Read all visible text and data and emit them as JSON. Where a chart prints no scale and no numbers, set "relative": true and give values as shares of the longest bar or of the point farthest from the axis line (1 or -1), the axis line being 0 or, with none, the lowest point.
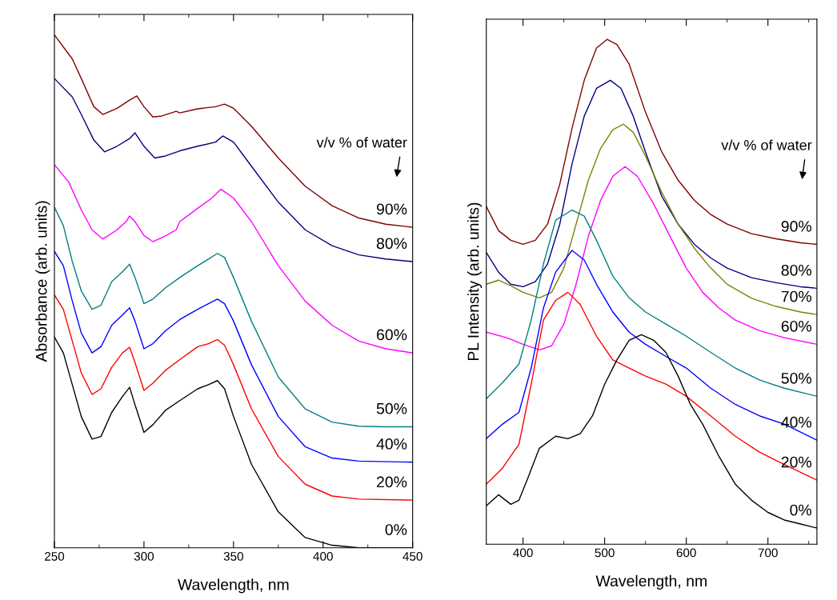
{
  "chart_data": [
    {
      "type": "line",
      "relative": true,
      "xlabel": "Wavelength, nm",
      "ylabel": "Absorbance (arb. units)",
      "xlim": [
        250,
        450
      ],
      "xticks": [
        250,
        300,
        350,
        400,
        450
      ],
      "tick_labels": "x",
      "annotations": [
        "v/v % of water"
      ],
      "series": [
        {
          "name": "90%",
          "color": "#800000",
          "x": [
            250,
            260,
            265,
            272,
            277,
            285,
            292,
            296,
            300,
            305,
            310,
            318,
            320,
            330,
            340,
            345,
            350,
            360,
            375,
            390,
            405,
            420,
            435,
            450
          ],
          "values": [
            1.0,
            0.953,
            0.915,
            0.86,
            0.845,
            0.857,
            0.873,
            0.881,
            0.86,
            0.84,
            0.842,
            0.851,
            0.848,
            0.856,
            0.86,
            0.865,
            0.857,
            0.822,
            0.76,
            0.705,
            0.667,
            0.643,
            0.631,
            0.625
          ]
        },
        {
          "name": "80%",
          "color": "#000080",
          "x": [
            250,
            260,
            265,
            272,
            278,
            285,
            292,
            295,
            300,
            306,
            312,
            320,
            330,
            340,
            344,
            350,
            360,
            375,
            390,
            405,
            420,
            435,
            450
          ],
          "values": [
            0.915,
            0.879,
            0.845,
            0.795,
            0.772,
            0.783,
            0.798,
            0.809,
            0.783,
            0.76,
            0.764,
            0.774,
            0.783,
            0.791,
            0.803,
            0.791,
            0.744,
            0.674,
            0.62,
            0.589,
            0.571,
            0.563,
            0.558
          ]
        },
        {
          "name": "60%",
          "color": "#ff00ff",
          "x": [
            250,
            258,
            265,
            271,
            277,
            285,
            290,
            292,
            295,
            300,
            305,
            312,
            318,
            320,
            330,
            338,
            343,
            350,
            360,
            375,
            390,
            405,
            420,
            435,
            450
          ],
          "values": [
            0.747,
            0.713,
            0.659,
            0.62,
            0.602,
            0.62,
            0.636,
            0.647,
            0.636,
            0.609,
            0.597,
            0.608,
            0.62,
            0.636,
            0.662,
            0.682,
            0.699,
            0.682,
            0.636,
            0.55,
            0.481,
            0.434,
            0.403,
            0.388,
            0.38
          ]
        },
        {
          "name": "50%",
          "color": "#008080",
          "x": [
            250,
            255,
            260,
            265,
            271,
            276,
            282,
            288,
            292,
            295,
            300,
            305,
            312,
            320,
            330,
            336,
            341,
            345,
            350,
            360,
            375,
            390,
            405,
            420,
            435,
            450
          ],
          "values": [
            0.664,
            0.628,
            0.558,
            0.501,
            0.465,
            0.473,
            0.519,
            0.538,
            0.553,
            0.527,
            0.476,
            0.485,
            0.507,
            0.527,
            0.55,
            0.563,
            0.574,
            0.566,
            0.527,
            0.442,
            0.333,
            0.271,
            0.245,
            0.237,
            0.236,
            0.236
          ]
        },
        {
          "name": "40%",
          "color": "#0000ff",
          "x": [
            250,
            255,
            260,
            265,
            271,
            276,
            282,
            288,
            292,
            295,
            300,
            305,
            312,
            320,
            330,
            336,
            341,
            345,
            350,
            360,
            375,
            390,
            405,
            420,
            450
          ],
          "values": [
            0.578,
            0.55,
            0.481,
            0.419,
            0.38,
            0.392,
            0.434,
            0.454,
            0.468,
            0.442,
            0.388,
            0.398,
            0.423,
            0.445,
            0.465,
            0.476,
            0.485,
            0.476,
            0.442,
            0.357,
            0.256,
            0.197,
            0.175,
            0.169,
            0.167
          ]
        },
        {
          "name": "20%",
          "color": "#ff0000",
          "x": [
            250,
            255,
            260,
            265,
            271,
            276,
            282,
            288,
            292,
            295,
            300,
            305,
            312,
            320,
            330,
            336,
            341,
            345,
            350,
            360,
            375,
            390,
            405,
            420,
            450
          ],
          "values": [
            0.493,
            0.465,
            0.403,
            0.341,
            0.299,
            0.31,
            0.352,
            0.38,
            0.391,
            0.361,
            0.307,
            0.321,
            0.346,
            0.367,
            0.392,
            0.398,
            0.406,
            0.395,
            0.357,
            0.271,
            0.178,
            0.124,
            0.101,
            0.095,
            0.093
          ]
        },
        {
          "name": "0%",
          "color": "#000000",
          "x": [
            250,
            255,
            260,
            265,
            271,
            276,
            282,
            288,
            292,
            295,
            300,
            305,
            312,
            320,
            330,
            336,
            341,
            345,
            350,
            360,
            375,
            390,
            405,
            420,
            450
          ],
          "values": [
            0.411,
            0.38,
            0.318,
            0.256,
            0.212,
            0.217,
            0.264,
            0.295,
            0.313,
            0.279,
            0.225,
            0.24,
            0.268,
            0.287,
            0.31,
            0.318,
            0.326,
            0.31,
            0.256,
            0.163,
            0.07,
            0.02,
            0.005,
            0.0,
            0.0
          ]
        }
      ]
    },
    {
      "type": "line",
      "relative": true,
      "xlabel": "Wavelength, nm",
      "ylabel": "PL Intensity (arb. units)",
      "xlim": [
        355,
        760
      ],
      "xticks": [
        400,
        500,
        600,
        700
      ],
      "tick_labels": "x",
      "annotations": [
        "v/v % of water"
      ],
      "series": [
        {
          "name": "90%",
          "color": "#800000",
          "x": [
            355,
            370,
            385,
            400,
            415,
            430,
            445,
            460,
            475,
            490,
            503,
            515,
            530,
            550,
            570,
            590,
            610,
            630,
            650,
            680,
            710,
            740,
            760
          ],
          "values": [
            0.669,
            0.621,
            0.602,
            0.594,
            0.602,
            0.634,
            0.713,
            0.824,
            0.919,
            0.983,
            1.0,
            0.99,
            0.951,
            0.856,
            0.777,
            0.721,
            0.681,
            0.653,
            0.634,
            0.615,
            0.605,
            0.597,
            0.594
          ]
        },
        {
          "name": "80%",
          "color": "#000080",
          "x": [
            355,
            370,
            385,
            400,
            415,
            430,
            445,
            460,
            475,
            490,
            507,
            520,
            535,
            550,
            570,
            590,
            610,
            630,
            650,
            680,
            710,
            740,
            760
          ],
          "values": [
            0.578,
            0.539,
            0.515,
            0.51,
            0.52,
            0.555,
            0.634,
            0.753,
            0.848,
            0.903,
            0.919,
            0.903,
            0.848,
            0.777,
            0.689,
            0.634,
            0.594,
            0.567,
            0.547,
            0.528,
            0.518,
            0.51,
            0.507
          ]
        },
        {
          "name": "70%",
          "color": "#808000",
          "x": [
            355,
            370,
            385,
            400,
            420,
            435,
            450,
            465,
            480,
            495,
            510,
            523,
            535,
            550,
            570,
            590,
            610,
            630,
            650,
            680,
            710,
            740,
            760
          ],
          "values": [
            0.515,
            0.523,
            0.512,
            0.499,
            0.488,
            0.499,
            0.547,
            0.634,
            0.721,
            0.784,
            0.821,
            0.832,
            0.816,
            0.769,
            0.697,
            0.634,
            0.586,
            0.547,
            0.515,
            0.487,
            0.471,
            0.46,
            0.455
          ]
        },
        {
          "name": "60%",
          "color": "#ff00ff",
          "x": [
            355,
            380,
            400,
            420,
            435,
            450,
            465,
            480,
            495,
            510,
            525,
            540,
            560,
            580,
            600,
            620,
            640,
            660,
            690,
            720,
            760
          ],
          "values": [
            0.42,
            0.409,
            0.396,
            0.385,
            0.393,
            0.436,
            0.515,
            0.61,
            0.681,
            0.729,
            0.748,
            0.729,
            0.674,
            0.61,
            0.547,
            0.499,
            0.468,
            0.444,
            0.423,
            0.409,
            0.396
          ]
        },
        {
          "name": "50%",
          "color": "#008080",
          "x": [
            355,
            375,
            395,
            410,
            425,
            440,
            460,
            475,
            490,
            510,
            530,
            550,
            575,
            600,
            630,
            660,
            690,
            720,
            760
          ],
          "values": [
            0.288,
            0.32,
            0.357,
            0.444,
            0.555,
            0.642,
            0.662,
            0.65,
            0.602,
            0.531,
            0.488,
            0.46,
            0.436,
            0.412,
            0.38,
            0.349,
            0.325,
            0.309,
            0.293
          ]
        },
        {
          "name": "40%",
          "color": "#0000ff",
          "x": [
            355,
            375,
            395,
            410,
            425,
            440,
            460,
            475,
            490,
            510,
            530,
            550,
            575,
            600,
            630,
            660,
            690,
            720,
            760
          ],
          "values": [
            0.209,
            0.238,
            0.261,
            0.349,
            0.468,
            0.539,
            0.582,
            0.563,
            0.515,
            0.46,
            0.42,
            0.396,
            0.372,
            0.349,
            0.309,
            0.277,
            0.254,
            0.238,
            0.206
          ]
        },
        {
          "name": "20%",
          "color": "#ff0000",
          "x": [
            355,
            375,
            395,
            410,
            425,
            440,
            455,
            470,
            490,
            510,
            530,
            550,
            575,
            600,
            630,
            660,
            690,
            720,
            760
          ],
          "values": [
            0.119,
            0.151,
            0.198,
            0.317,
            0.444,
            0.483,
            0.499,
            0.475,
            0.412,
            0.365,
            0.349,
            0.333,
            0.317,
            0.293,
            0.254,
            0.214,
            0.182,
            0.158,
            0.127
          ]
        },
        {
          "name": "0%",
          "color": "#000000",
          "x": [
            355,
            370,
            385,
            395,
            405,
            420,
            440,
            455,
            470,
            485,
            500,
            515,
            530,
            545,
            560,
            575,
            590,
            605,
            620,
            640,
            660,
            680,
            700,
            720,
            740,
            760
          ],
          "values": [
            0.076,
            0.098,
            0.079,
            0.087,
            0.127,
            0.19,
            0.214,
            0.209,
            0.219,
            0.254,
            0.317,
            0.365,
            0.404,
            0.415,
            0.404,
            0.38,
            0.333,
            0.277,
            0.238,
            0.174,
            0.119,
            0.087,
            0.063,
            0.048,
            0.04,
            0.032
          ]
        }
      ]
    }
  ]
}
